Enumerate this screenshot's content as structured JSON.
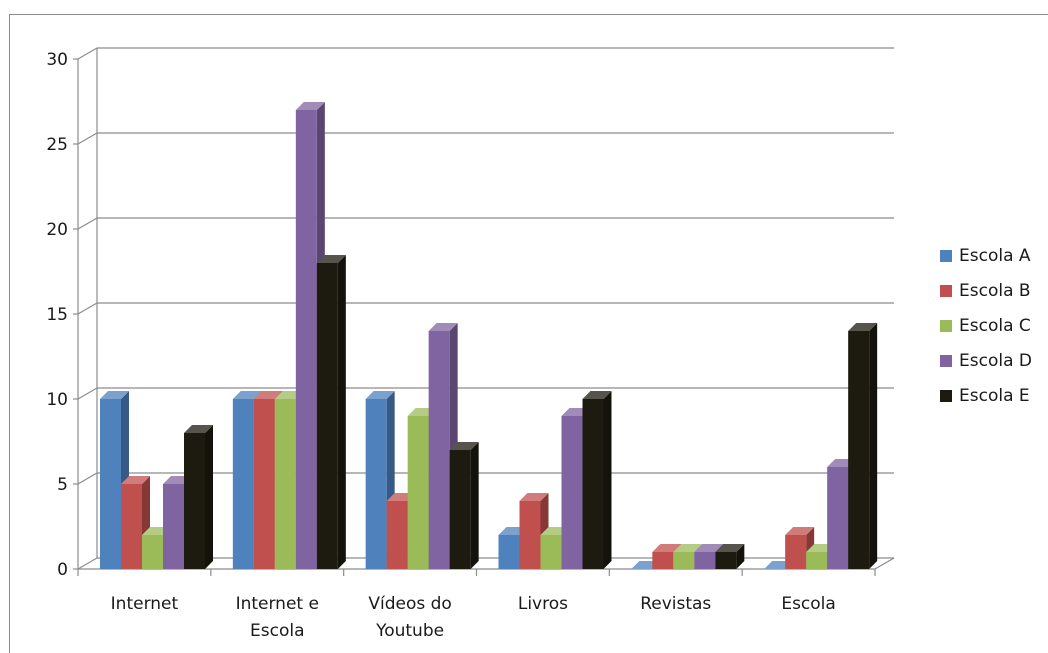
{
  "chart_data": {
    "type": "bar",
    "categories": [
      [
        "Internet"
      ],
      [
        "Internet e",
        "Escola"
      ],
      [
        "Vídeos do",
        "Youtube"
      ],
      [
        "Livros"
      ],
      [
        "Revistas"
      ],
      [
        "Escola"
      ]
    ],
    "series": [
      {
        "name": "Escola A",
        "color": "#4f81bd",
        "values": [
          10,
          10,
          10,
          2,
          0,
          0
        ]
      },
      {
        "name": "Escola B",
        "color": "#c0504d",
        "values": [
          5,
          10,
          4,
          4,
          1,
          2
        ]
      },
      {
        "name": "Escola C",
        "color": "#9bbb59",
        "values": [
          2,
          10,
          9,
          2,
          1,
          1
        ]
      },
      {
        "name": "Escola D",
        "color": "#8064a2",
        "values": [
          5,
          27,
          14,
          9,
          1,
          6
        ]
      },
      {
        "name": "Escola E",
        "color": "#1d1b10",
        "values": [
          8,
          18,
          7,
          10,
          1,
          14
        ]
      }
    ],
    "yticks": [
      "0",
      "5",
      "10",
      "15",
      "20",
      "25",
      "30"
    ],
    "ylim": [
      0,
      30
    ],
    "grid": true,
    "legend": "right",
    "style": "3d-clustered-column"
  }
}
